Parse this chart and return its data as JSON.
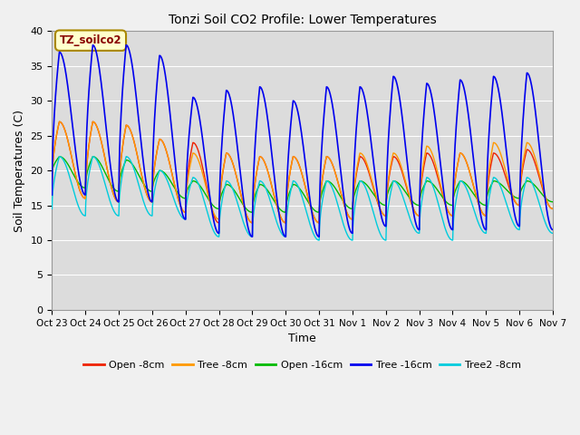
{
  "title": "Tonzi Soil CO2 Profile: Lower Temperatures",
  "xlabel": "Time",
  "ylabel": "Soil Temperatures (C)",
  "ylim": [
    0,
    40
  ],
  "yticks": [
    0,
    5,
    10,
    15,
    20,
    25,
    30,
    35,
    40
  ],
  "annotation_text": "TZ_soilco2",
  "annotation_color": "#880000",
  "annotation_bg": "#ffffcc",
  "annotation_border": "#aa8800",
  "series_order": [
    "Open -8cm",
    "Tree -8cm",
    "Open -16cm",
    "Tree -16cm",
    "Tree2 -8cm"
  ],
  "series_colors": {
    "Open -8cm": "#ee2200",
    "Tree -8cm": "#ff9900",
    "Open -16cm": "#00bb00",
    "Tree -16cm": "#0000ee",
    "Tree2 -8cm": "#00ccdd"
  },
  "background_color": "#dcdcdc",
  "plot_bg": "#dcdcdc",
  "grid_color": "#ffffff",
  "n_cycles": 15,
  "x_tick_labels": [
    "Oct 23",
    "Oct 24",
    "Oct 25",
    "Oct 26",
    "Oct 27",
    "Oct 28",
    "Oct 29",
    "Oct 30",
    "Oct 31",
    "Nov 1",
    "Nov 2",
    "Nov 3",
    "Nov 4",
    "Nov 5",
    "Nov 6",
    "Nov 7"
  ],
  "cycle_peaks": {
    "Open -8cm": [
      27.0,
      27.0,
      26.5,
      24.5,
      24.0,
      22.5,
      22.0,
      22.0,
      22.0,
      22.0,
      22.0,
      22.5,
      22.5,
      22.5,
      23.0
    ],
    "Tree -8cm": [
      27.0,
      27.0,
      26.5,
      24.5,
      22.5,
      22.5,
      22.0,
      22.0,
      22.0,
      22.5,
      22.5,
      23.5,
      22.5,
      24.0,
      24.0
    ],
    "Open -16cm": [
      22.0,
      22.0,
      21.5,
      20.0,
      18.5,
      18.0,
      18.0,
      18.0,
      18.5,
      18.5,
      18.5,
      18.5,
      18.5,
      18.5,
      18.5
    ],
    "Tree -16cm": [
      37.0,
      38.0,
      38.0,
      36.5,
      30.5,
      31.5,
      32.0,
      30.0,
      32.0,
      32.0,
      33.5,
      32.5,
      33.0,
      33.5,
      34.0
    ],
    "Tree2 -8cm": [
      22.0,
      22.0,
      22.0,
      20.0,
      19.0,
      18.5,
      18.5,
      18.5,
      18.5,
      18.5,
      18.5,
      19.0,
      18.5,
      19.0,
      19.0
    ]
  },
  "cycle_troughs": {
    "Open -8cm": [
      15.0,
      14.5,
      15.0,
      13.5,
      12.0,
      12.0,
      12.0,
      12.0,
      12.5,
      13.0,
      13.0,
      13.5,
      13.0,
      14.5,
      14.5
    ],
    "Tree -8cm": [
      15.0,
      14.5,
      15.0,
      13.5,
      12.5,
      12.0,
      12.0,
      12.0,
      12.5,
      13.0,
      13.0,
      13.5,
      13.0,
      14.5,
      14.5
    ],
    "Open -16cm": [
      17.0,
      16.5,
      16.5,
      15.5,
      14.0,
      13.5,
      13.5,
      13.5,
      14.0,
      14.5,
      14.5,
      15.0,
      14.5,
      15.5,
      15.5
    ],
    "Tree -16cm": [
      16.0,
      15.0,
      15.0,
      12.5,
      10.5,
      10.0,
      10.0,
      10.0,
      10.5,
      11.5,
      11.0,
      11.0,
      11.0,
      11.0,
      11.5
    ],
    "Tree2 -8cm": [
      13.0,
      13.0,
      13.0,
      12.5,
      10.0,
      10.0,
      10.0,
      10.0,
      9.5,
      9.5,
      9.5,
      10.5,
      9.5,
      10.5,
      11.0
    ]
  },
  "cycle_start_vals": {
    "Open -8cm": [
      18.0,
      16.0,
      15.5,
      15.5,
      14.0,
      12.5,
      12.5,
      12.5,
      12.5,
      13.0,
      13.5,
      13.5,
      13.5,
      13.5,
      15.0
    ],
    "Tree -8cm": [
      18.0,
      16.0,
      15.5,
      15.5,
      14.0,
      13.0,
      12.5,
      12.5,
      12.5,
      13.0,
      13.5,
      13.5,
      13.5,
      13.5,
      15.0
    ],
    "Open -16cm": [
      19.5,
      17.5,
      17.0,
      17.0,
      16.0,
      14.5,
      14.0,
      14.0,
      14.0,
      14.5,
      15.0,
      15.0,
      15.0,
      15.0,
      16.0
    ],
    "Tree -16cm": [
      16.5,
      16.5,
      15.5,
      15.5,
      13.0,
      11.0,
      10.5,
      10.5,
      10.5,
      11.0,
      12.0,
      11.5,
      11.5,
      11.5,
      12.0
    ],
    "Tree2 -8cm": [
      14.5,
      13.5,
      13.5,
      13.5,
      13.0,
      10.5,
      10.5,
      10.5,
      10.0,
      10.0,
      10.0,
      11.0,
      10.0,
      11.0,
      11.5
    ]
  }
}
